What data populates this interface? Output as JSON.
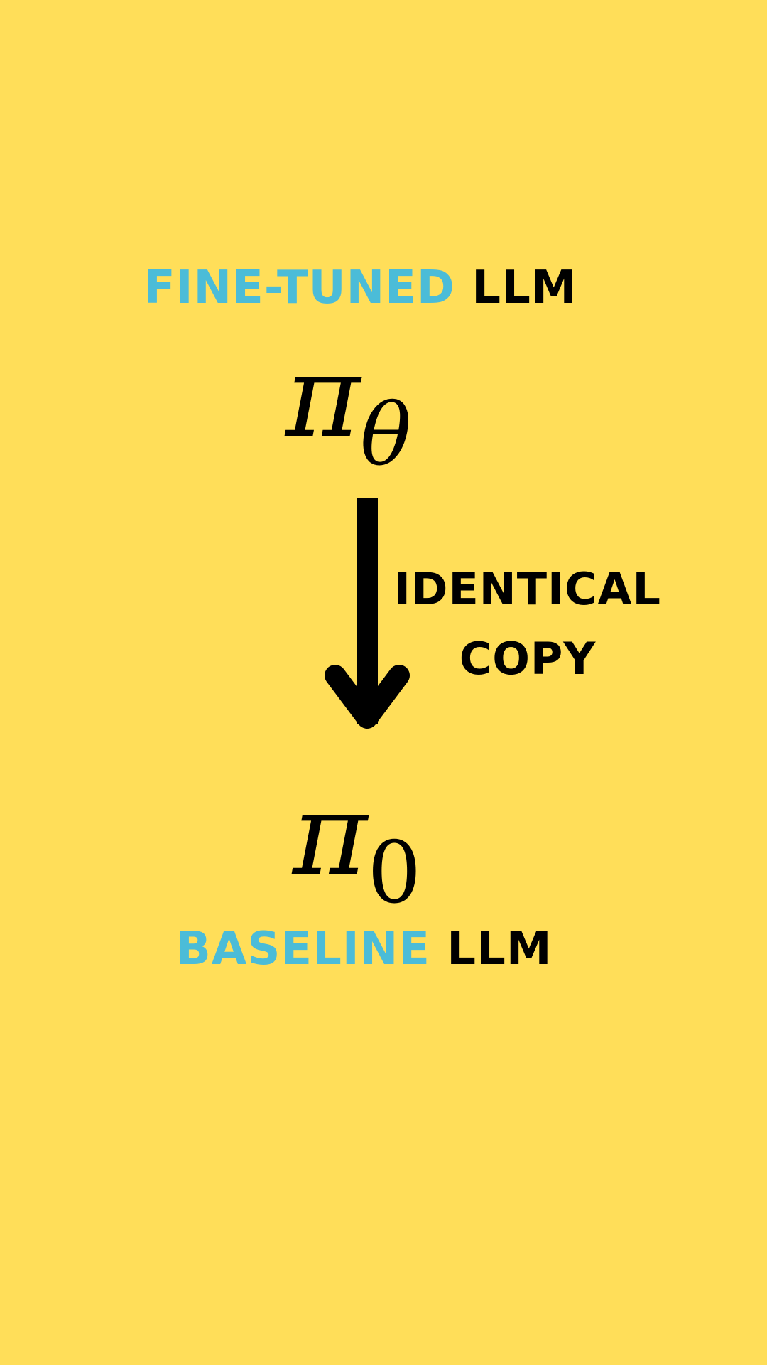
{
  "colors": {
    "background": "#FFDE59",
    "accent": "#4BBCD8",
    "text": "#000000"
  },
  "top": {
    "accent_word": "FINE-TUNED",
    "plain_word": "LLM",
    "symbol_main": "π",
    "symbol_sub": "θ"
  },
  "arrow": {
    "icon": "down-arrow-icon",
    "label_line1": "IDENTICAL",
    "label_line2": "COPY"
  },
  "bottom": {
    "symbol_main": "π",
    "symbol_sub": "0",
    "accent_word": "BASELINE",
    "plain_word": "LLM"
  }
}
